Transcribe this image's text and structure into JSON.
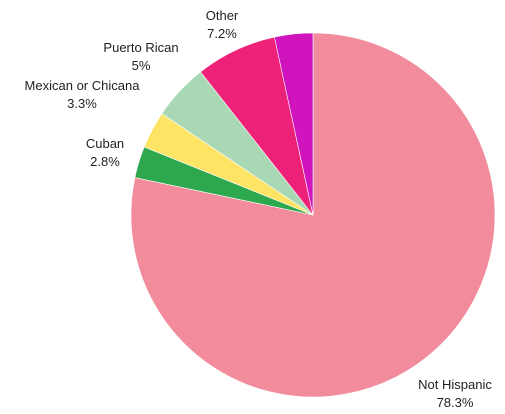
{
  "chart_data": {
    "type": "pie",
    "title": "",
    "start_angle_deg": 0,
    "direction": "clockwise",
    "slices": [
      {
        "name": "Not Hispanic",
        "value": 78.3,
        "display": "78.3%",
        "color": "#F28C9C"
      },
      {
        "name": "Cuban",
        "value": 2.8,
        "display": "2.8%",
        "color": "#2EA84F"
      },
      {
        "name": "Mexican or Chicana",
        "value": 3.3,
        "display": "3.3%",
        "color": "#FDE464"
      },
      {
        "name": "Puerto Rican",
        "value": 5,
        "display": "5%",
        "color": "#A8D8B4"
      },
      {
        "name": "Other",
        "value": 7.2,
        "display": "7.2%",
        "color": "#EE2179"
      },
      {
        "name": "",
        "value": 3.4,
        "display": "",
        "color": "#CF14BE"
      }
    ]
  }
}
